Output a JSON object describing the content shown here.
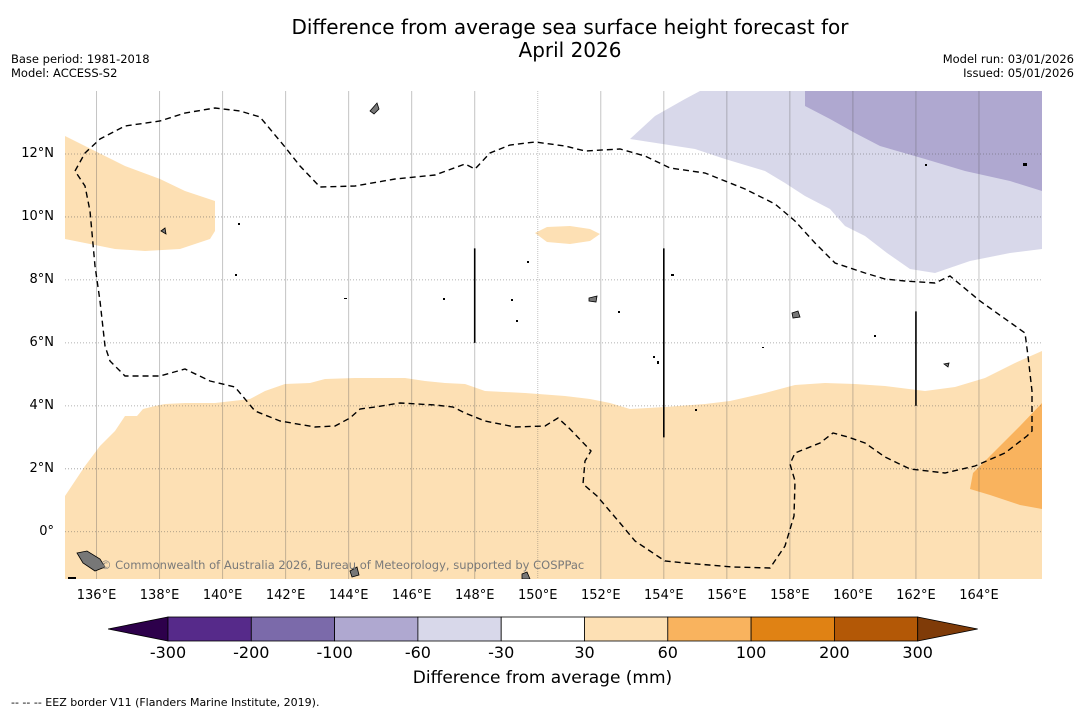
{
  "title": {
    "line1": "Difference from average sea surface height forecast for",
    "line2": "April 2026"
  },
  "meta": {
    "base_period": "Base period: 1981-2018",
    "model": "Model: ACCESS-S2",
    "model_run": "Model run: 03/01/2026",
    "issued": "Issued: 05/01/2026"
  },
  "map": {
    "lon_range": [
      135,
      166
    ],
    "lat_range": [
      -1.5,
      14
    ],
    "x_ticks": [
      {
        "lon": 136,
        "label": "136°E"
      },
      {
        "lon": 138,
        "label": "138°E"
      },
      {
        "lon": 140,
        "label": "140°E"
      },
      {
        "lon": 142,
        "label": "142°E"
      },
      {
        "lon": 144,
        "label": "144°E"
      },
      {
        "lon": 146,
        "label": "146°E"
      },
      {
        "lon": 148,
        "label": "148°E"
      },
      {
        "lon": 150,
        "label": "150°E"
      },
      {
        "lon": 152,
        "label": "152°E"
      },
      {
        "lon": 154,
        "label": "154°E"
      },
      {
        "lon": 156,
        "label": "156°E"
      },
      {
        "lon": 158,
        "label": "158°E"
      },
      {
        "lon": 160,
        "label": "160°E"
      },
      {
        "lon": 162,
        "label": "162°E"
      },
      {
        "lon": 164,
        "label": "164°E"
      }
    ],
    "y_ticks": [
      {
        "lat": 12,
        "label": "12°N"
      },
      {
        "lat": 10,
        "label": "10°N"
      },
      {
        "lat": 8,
        "label": "8°N"
      },
      {
        "lat": 6,
        "label": "6°N"
      },
      {
        "lat": 4,
        "label": "4°N"
      },
      {
        "lat": 2,
        "label": "2°N"
      },
      {
        "lat": 0,
        "label": "0°"
      }
    ],
    "credit": "© Commonwealth of Australia 2026, Bureau of Meteorology, supported by COSPPac",
    "eez_segments": [
      {
        "lon": 148,
        "lat_from": 6,
        "lat_to": 9
      },
      {
        "lon": 154,
        "lat_from": 3,
        "lat_to": 9
      },
      {
        "lon": 162,
        "lat_from": 4,
        "lat_to": 7
      }
    ]
  },
  "colorbar": {
    "title": "Difference from average (mm)",
    "labels": [
      "-300",
      "-200",
      "-100",
      "-60",
      "-30",
      "30",
      "60",
      "100",
      "200",
      "300"
    ],
    "bins": [
      "#562a8a",
      "#7b6aaa",
      "#afa8d0",
      "#d8d8ea",
      "#ffffff",
      "#fde0b4",
      "#f9b35e",
      "#e08214",
      "#b35806"
    ],
    "under_color": "#2d004b",
    "over_color": "#7f3b08"
  },
  "footnote": "--  --  -- EEZ border V11 (Flanders Marine Institute, 2019)."
}
